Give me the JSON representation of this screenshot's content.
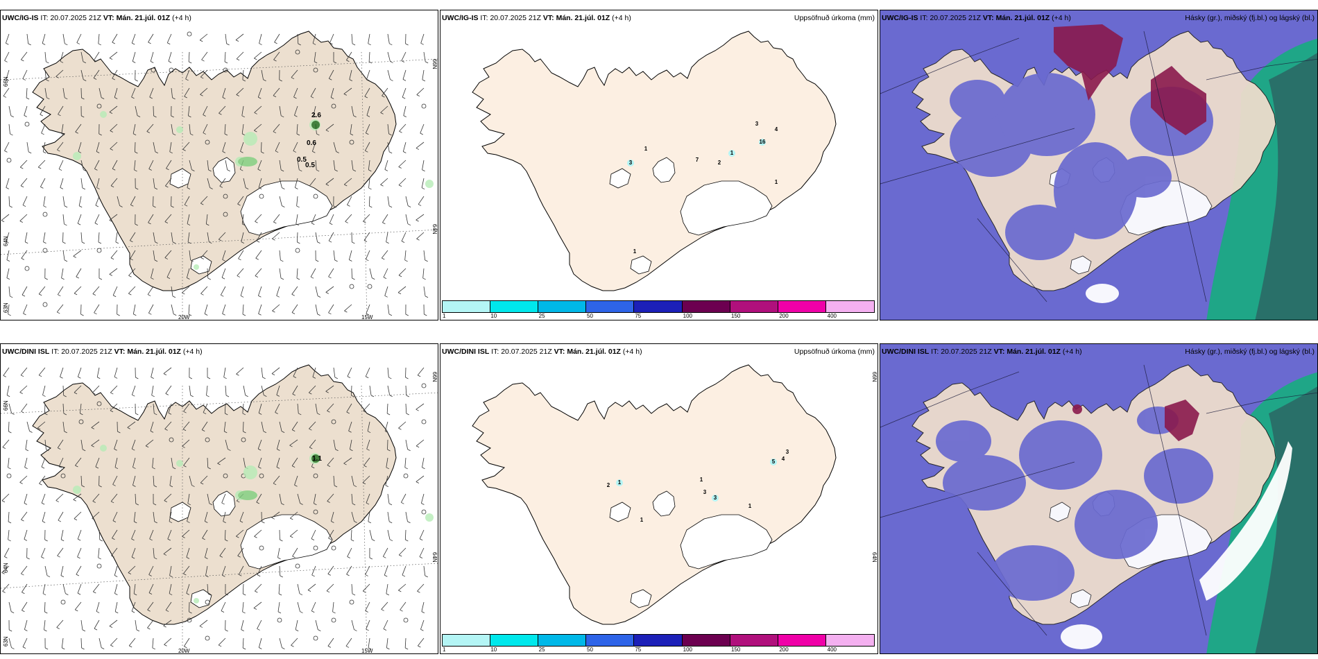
{
  "rows": [
    {
      "model": "UWC/IG-IS",
      "it_label": "IT:",
      "it": "20.07.2025 21Z",
      "vt_label": "VT:",
      "vt": "Mán. 21.júl. 01Z",
      "lead": "(+4 h)",
      "wind_labels": [
        "2.6",
        "0.6",
        "0.5",
        "0.5"
      ],
      "rain_labels": [
        "1",
        "3",
        "7",
        "2",
        "1",
        "3",
        "4",
        "16",
        "1",
        "1"
      ]
    },
    {
      "model": "UWC/DINI ISL",
      "it_label": "IT:",
      "it": "20.07.2025 21Z",
      "vt_label": "VT:",
      "vt": "Mán. 21.júl. 01Z",
      "lead": "(+4 h)",
      "wind_labels": [
        "1.1"
      ],
      "rain_labels": [
        "2",
        "1",
        "1",
        "3",
        "3",
        "1",
        "1",
        "5",
        "4",
        "3"
      ]
    }
  ],
  "precip_title": "Uppsöfnuð úrkoma (mm)",
  "cloud_title": "Hásky (gr.), miðský (fj.bl.) og lágský (bl.)",
  "grid_labels": {
    "lat_66": "66N",
    "lat_64": "64N",
    "lat_63": "63N",
    "lon_20": "20W",
    "lon_15": "15W"
  },
  "colorbar": {
    "ticks": [
      "1",
      "10",
      "25",
      "50",
      "75",
      "100",
      "150",
      "200",
      "400"
    ],
    "colors": [
      "#b4f5f5",
      "#00e8ec",
      "#00b8e8",
      "#2e64e8",
      "#1c20b8",
      "#6c0050",
      "#b0107c",
      "#f000a8",
      "#f4b0f0"
    ]
  },
  "colors": {
    "land_wind": "#ecdfcf",
    "land_precip": "#fcefe2",
    "cloud_ocean": "#6a6ad0",
    "cloud_high": "#8a1a4c",
    "cloud_low": "#12b07a"
  }
}
